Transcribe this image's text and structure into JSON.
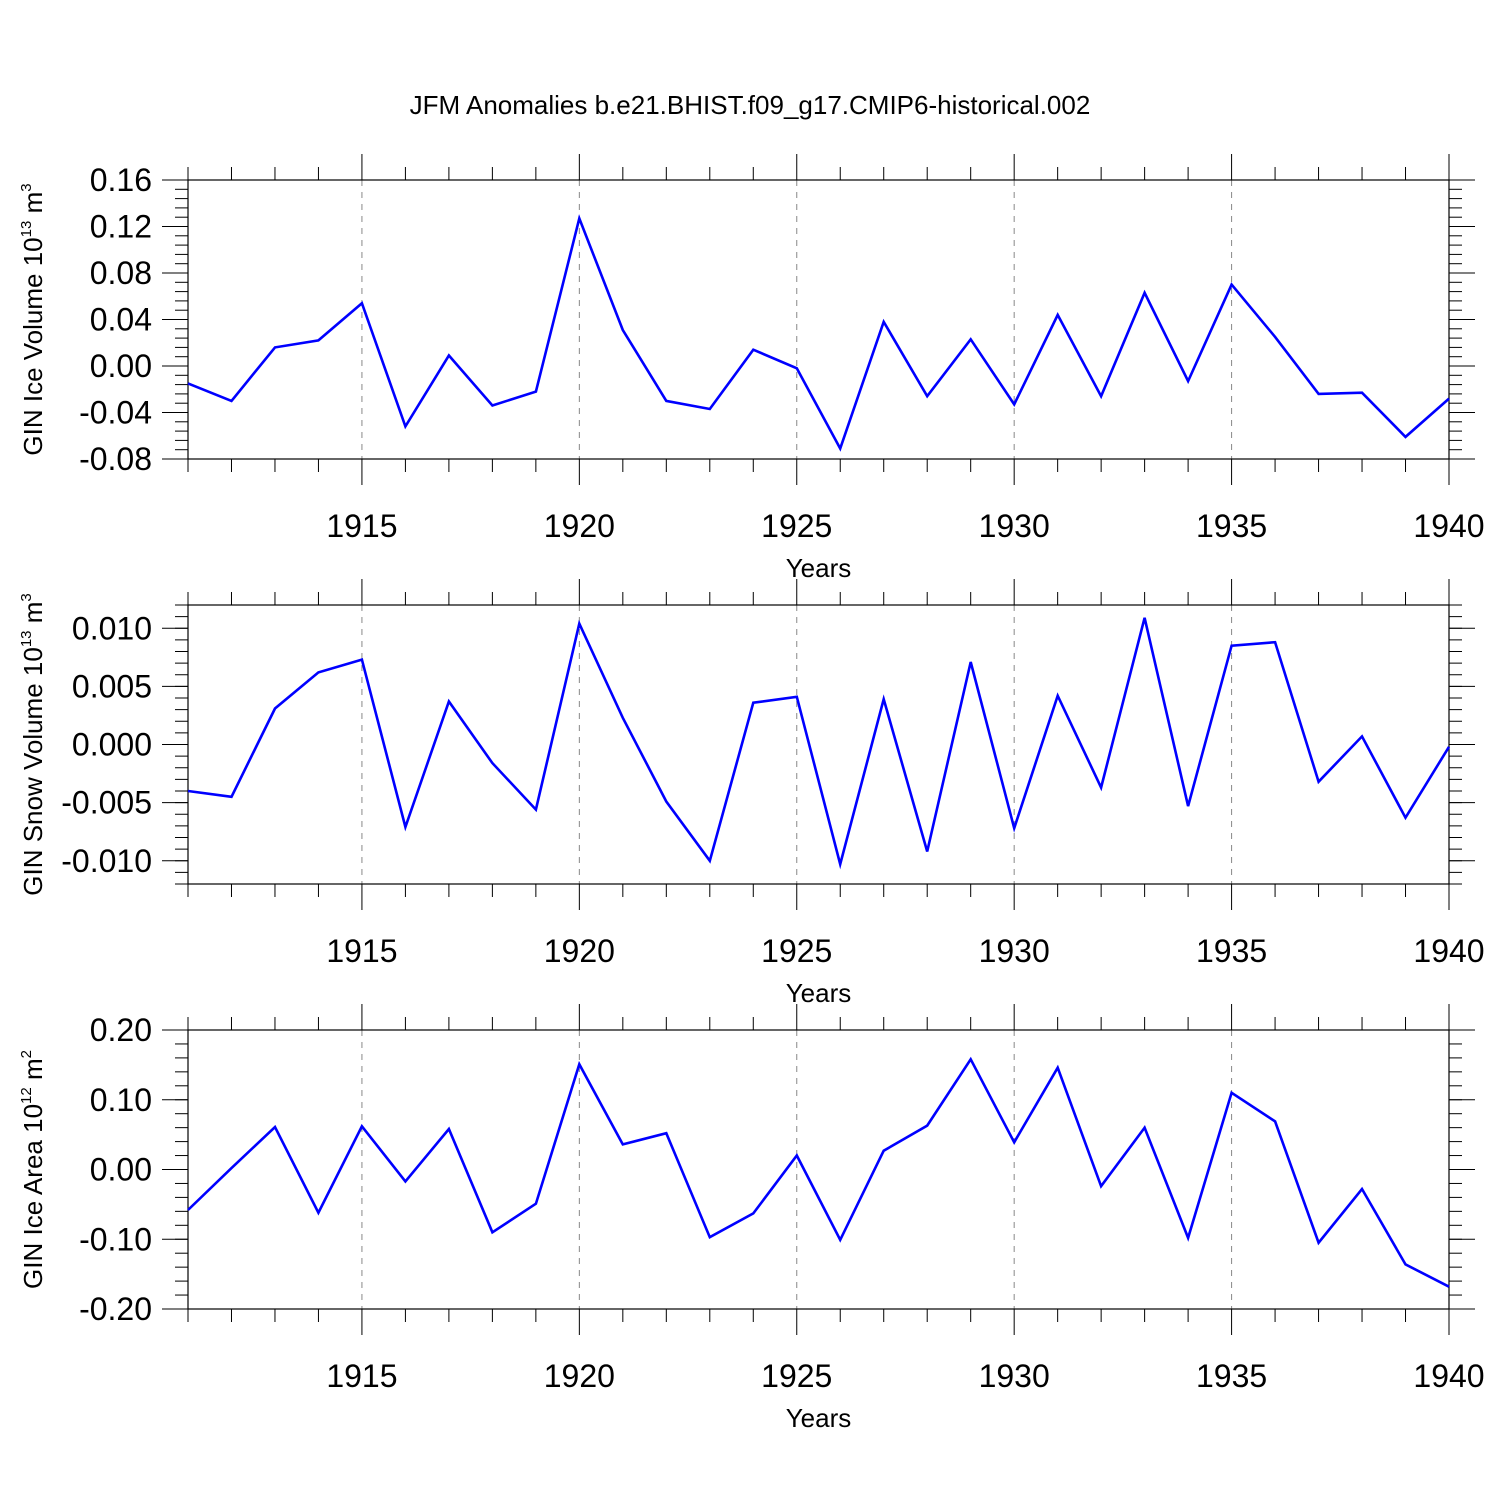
{
  "title": "JFM Anomalies b.e21.BHIST.f09_g17.CMIP6-historical.002",
  "colors": {
    "line": "#0000ff",
    "axis": "#000000",
    "grid": "#888888"
  },
  "chart_data": [
    {
      "type": "line",
      "xlabel": "Years",
      "ylabel": {
        "main": "GIN Ice Volume 10",
        "exp": "13",
        "unit": " m",
        "unit_exp": "3"
      },
      "xlim": [
        1911,
        1940
      ],
      "ylim": [
        -0.08,
        0.16
      ],
      "xticks": [
        "1915",
        "1920",
        "1925",
        "1930",
        "1935",
        "1940"
      ],
      "yticks": [
        {
          "v": -0.08,
          "label": "-0.08"
        },
        {
          "v": -0.04,
          "label": "-0.04"
        },
        {
          "v": 0.0,
          "label": "0.00"
        },
        {
          "v": 0.04,
          "label": "0.04"
        },
        {
          "v": 0.08,
          "label": "0.08"
        },
        {
          "v": 0.12,
          "label": "0.12"
        },
        {
          "v": 0.16,
          "label": "0.16"
        }
      ],
      "yminor": 0.008,
      "x": [
        1911,
        1912,
        1913,
        1914,
        1915,
        1916,
        1917,
        1918,
        1919,
        1920,
        1921,
        1922,
        1923,
        1924,
        1925,
        1926,
        1927,
        1928,
        1929,
        1930,
        1931,
        1932,
        1933,
        1934,
        1935,
        1936,
        1937,
        1938,
        1939,
        1940
      ],
      "values": [
        -0.015,
        -0.03,
        0.016,
        0.022,
        0.054,
        -0.052,
        0.009,
        -0.034,
        -0.022,
        0.127,
        0.031,
        -0.03,
        -0.037,
        0.014,
        -0.002,
        -0.071,
        0.038,
        -0.026,
        0.023,
        -0.033,
        0.044,
        -0.026,
        0.063,
        -0.013,
        0.07,
        0.025,
        -0.024,
        -0.023,
        -0.061,
        -0.028
      ]
    },
    {
      "type": "line",
      "xlabel": "Years",
      "ylabel": {
        "main": "GIN Snow Volume 10",
        "exp": "13",
        "unit": " m",
        "unit_exp": "3"
      },
      "xlim": [
        1911,
        1940
      ],
      "ylim": [
        -0.012,
        0.012
      ],
      "xticks": [
        "1915",
        "1920",
        "1925",
        "1930",
        "1935",
        "1940"
      ],
      "yticks": [
        {
          "v": -0.01,
          "label": "-0.010"
        },
        {
          "v": -0.005,
          "label": "-0.005"
        },
        {
          "v": 0.0,
          "label": "0.000"
        },
        {
          "v": 0.005,
          "label": "0.005"
        },
        {
          "v": 0.01,
          "label": "0.010"
        }
      ],
      "yminor": 0.001,
      "x": [
        1911,
        1912,
        1913,
        1914,
        1915,
        1916,
        1917,
        1918,
        1919,
        1920,
        1921,
        1922,
        1923,
        1924,
        1925,
        1926,
        1927,
        1928,
        1929,
        1930,
        1931,
        1932,
        1933,
        1934,
        1935,
        1936,
        1937,
        1938,
        1939,
        1940
      ],
      "values": [
        -0.004,
        -0.0045,
        0.0031,
        0.0062,
        0.0073,
        -0.0071,
        0.0037,
        -0.0016,
        -0.0056,
        0.0104,
        0.0023,
        -0.0049,
        -0.01,
        0.0036,
        0.0041,
        -0.0103,
        0.0039,
        -0.0092,
        0.0071,
        -0.0072,
        0.0042,
        -0.0037,
        0.0109,
        -0.0053,
        0.0085,
        0.0088,
        -0.0032,
        0.0007,
        -0.0063,
        -0.0002
      ]
    },
    {
      "type": "line",
      "xlabel": "Years",
      "ylabel": {
        "main": "GIN Ice Area 10",
        "exp": "12",
        "unit": " m",
        "unit_exp": "2"
      },
      "xlim": [
        1911,
        1940
      ],
      "ylim": [
        -0.2,
        0.2
      ],
      "xticks": [
        "1915",
        "1920",
        "1925",
        "1930",
        "1935",
        "1940"
      ],
      "yticks": [
        {
          "v": -0.2,
          "label": "-0.20"
        },
        {
          "v": -0.1,
          "label": "-0.10"
        },
        {
          "v": 0.0,
          "label": "0.00"
        },
        {
          "v": 0.1,
          "label": "0.10"
        },
        {
          "v": 0.2,
          "label": "0.20"
        }
      ],
      "yminor": 0.02,
      "x": [
        1911,
        1912,
        1913,
        1914,
        1915,
        1916,
        1917,
        1918,
        1919,
        1920,
        1921,
        1922,
        1923,
        1924,
        1925,
        1926,
        1927,
        1928,
        1929,
        1930,
        1931,
        1932,
        1933,
        1934,
        1935,
        1936,
        1937,
        1938,
        1939,
        1940
      ],
      "values": [
        -0.058,
        0.002,
        0.061,
        -0.062,
        0.062,
        -0.017,
        0.058,
        -0.09,
        -0.049,
        0.151,
        0.036,
        0.052,
        -0.097,
        -0.063,
        0.02,
        -0.101,
        0.027,
        0.063,
        0.158,
        0.039,
        0.146,
        -0.024,
        0.06,
        -0.098,
        0.11,
        0.069,
        -0.105,
        -0.028,
        -0.136,
        -0.168
      ]
    }
  ]
}
